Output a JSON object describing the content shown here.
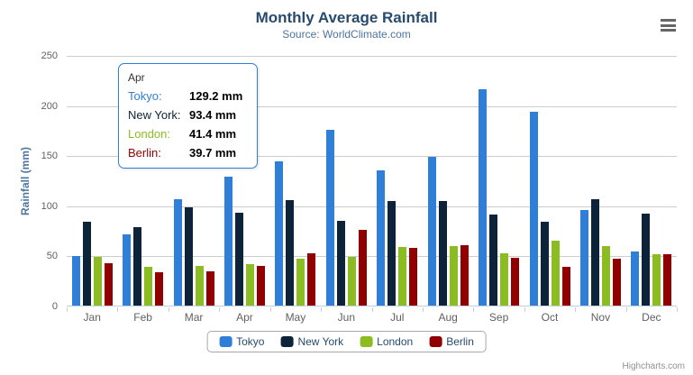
{
  "chart_data": {
    "type": "bar",
    "title": "Monthly Average Rainfall",
    "subtitle": "Source: WorldClimate.com",
    "xlabel": "",
    "ylabel": "Rainfall (mm)",
    "ylim": [
      0,
      250
    ],
    "yticks": [
      0,
      50,
      100,
      150,
      200,
      250
    ],
    "grid": true,
    "legend_position": "bottom",
    "categories": [
      "Jan",
      "Feb",
      "Mar",
      "Apr",
      "May",
      "Jun",
      "Jul",
      "Aug",
      "Sep",
      "Oct",
      "Nov",
      "Dec"
    ],
    "series": [
      {
        "name": "Tokyo",
        "color": "#2f7ed8",
        "values": [
          49.9,
          71.5,
          106.4,
          129.2,
          144.0,
          176.0,
          135.6,
          148.5,
          216.4,
          194.1,
          95.6,
          54.4
        ]
      },
      {
        "name": "New York",
        "color": "#0d233a",
        "values": [
          83.6,
          78.8,
          98.5,
          93.4,
          106.0,
          84.5,
          105.0,
          104.3,
          91.2,
          83.5,
          106.6,
          92.3
        ]
      },
      {
        "name": "London",
        "color": "#8bbc21",
        "values": [
          48.9,
          38.8,
          39.3,
          41.4,
          47.0,
          48.3,
          59.0,
          59.6,
          52.4,
          65.2,
          59.3,
          51.2
        ]
      },
      {
        "name": "Berlin",
        "color": "#910000",
        "values": [
          42.4,
          33.2,
          34.5,
          39.7,
          52.6,
          75.5,
          57.4,
          60.4,
          47.6,
          39.1,
          46.8,
          51.1
        ]
      }
    ]
  },
  "tooltip": {
    "header": "Apr",
    "border_color": "#2f7ed8",
    "rows": [
      {
        "label": "Tokyo:",
        "value": "129.2 mm",
        "color": "#2f7ed8"
      },
      {
        "label": "New York:",
        "value": "93.4 mm",
        "color": "#0d233a"
      },
      {
        "label": "London:",
        "value": "41.4 mm",
        "color": "#8bbc21"
      },
      {
        "label": "Berlin:",
        "value": "39.7 mm",
        "color": "#910000"
      }
    ]
  },
  "credit": "Highcharts.com",
  "icons": {
    "menu": "hamburger-menu-icon"
  },
  "colors": {
    "title": "#274b6d",
    "subtitle": "#4d759e",
    "axis_title": "#4d759e",
    "axis_labels": "#606060",
    "gridline": "#cccccc",
    "axis_line": "#c0d0e0",
    "legend_text": "#274b6d",
    "legend_border": "#a8a8a8",
    "credit": "#909090"
  }
}
